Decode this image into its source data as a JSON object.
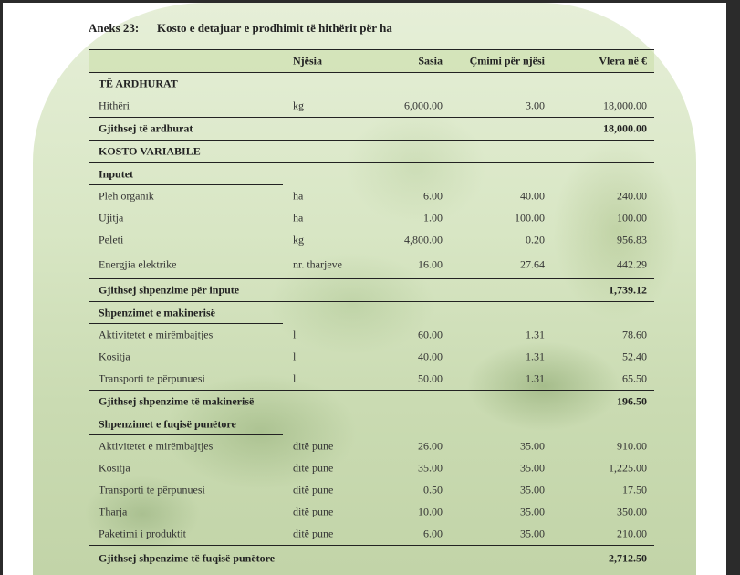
{
  "title": {
    "number": "Aneks 23:",
    "text": "Kosto e detajuar e prodhimit të hithërit për ha"
  },
  "table": {
    "headers": [
      "",
      "Njësia",
      "Sasia",
      "Çmimi për njësi",
      "Vlera në €"
    ],
    "rows": [
      {
        "type": "section",
        "cells": [
          "TË ARDHURAT",
          "",
          "",
          "",
          ""
        ]
      },
      {
        "type": "item",
        "cells": [
          "Hithëri",
          "kg",
          "6,000.00",
          "3.00",
          "18,000.00"
        ]
      },
      {
        "type": "total",
        "cells": [
          "Gjithsej të ardhurat",
          "",
          "",
          "",
          "18,000.00"
        ]
      },
      {
        "type": "section-line",
        "cells": [
          "KOSTO VARIABILE",
          "",
          "",
          "",
          ""
        ]
      },
      {
        "type": "subsection",
        "cells": [
          "Inputet",
          "",
          "",
          "",
          ""
        ]
      },
      {
        "type": "item",
        "cells": [
          "Pleh organik",
          "ha",
          "6.00",
          "40.00",
          "240.00"
        ]
      },
      {
        "type": "item",
        "cells": [
          "Ujitja",
          "ha",
          "1.00",
          "100.00",
          "100.00"
        ]
      },
      {
        "type": "item",
        "cells": [
          "Peleti",
          "kg",
          "4,800.00",
          "0.20",
          "956.83"
        ]
      },
      {
        "type": "item-tall",
        "cells": [
          "Energjia elektrike",
          "nr. tharjeve",
          "16.00",
          "27.64",
          "442.29"
        ]
      },
      {
        "type": "total",
        "cells": [
          "Gjithsej shpenzime për inpute",
          "",
          "",
          "",
          "1,739.12"
        ]
      },
      {
        "type": "subsection",
        "cells": [
          "Shpenzimet e makinerisë",
          "",
          "",
          "",
          ""
        ]
      },
      {
        "type": "item",
        "cells": [
          "Aktivitetet e mirëmbajtjes",
          "l",
          "60.00",
          "1.31",
          "78.60"
        ]
      },
      {
        "type": "item",
        "cells": [
          "Kositja",
          "l",
          "40.00",
          "1.31",
          "52.40"
        ]
      },
      {
        "type": "item",
        "cells": [
          "Transporti te përpunuesi",
          "l",
          "50.00",
          "1.31",
          "65.50"
        ]
      },
      {
        "type": "total",
        "cells": [
          "Gjithsej shpenzime të makinerisë",
          "",
          "",
          "",
          "196.50"
        ]
      },
      {
        "type": "subsection",
        "cells": [
          "Shpenzimet e fuqisë punëtore",
          "",
          "",
          "",
          ""
        ]
      },
      {
        "type": "item",
        "cells": [
          "Aktivitetet e mirëmbajtjes",
          "ditë pune",
          "26.00",
          "35.00",
          "910.00"
        ]
      },
      {
        "type": "item",
        "cells": [
          "Kositja",
          "ditë pune",
          "35.00",
          "35.00",
          "1,225.00"
        ]
      },
      {
        "type": "item",
        "cells": [
          "Transporti te përpunuesi",
          "ditë pune",
          "0.50",
          "35.00",
          "17.50"
        ]
      },
      {
        "type": "item",
        "cells": [
          "Tharja",
          "ditë pune",
          "10.00",
          "35.00",
          "350.00"
        ]
      },
      {
        "type": "item",
        "cells": [
          "Paketimi i produktit",
          "ditë pune",
          "6.00",
          "35.00",
          "210.00"
        ]
      },
      {
        "type": "total-tall",
        "cells": [
          "Gjithsej shpenzime të fuqisë punëtore",
          "",
          "",
          "",
          "2,712.50"
        ]
      }
    ]
  }
}
